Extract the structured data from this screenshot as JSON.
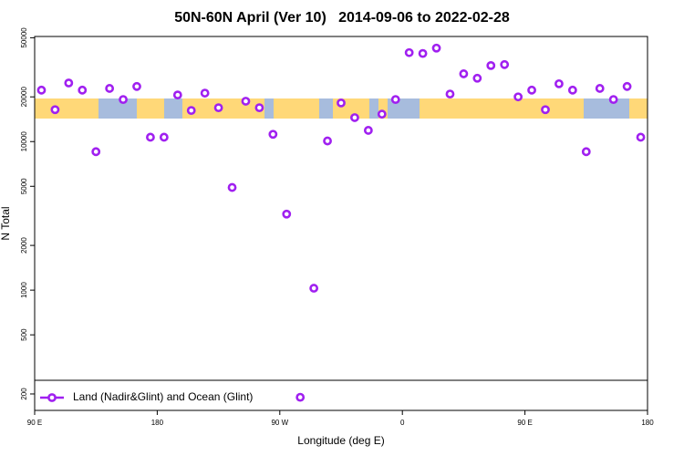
{
  "chart_data": {
    "type": "scatter",
    "title": "50N-60N April (Ver 10)   2014-09-06 to 2022-02-28",
    "xlabel": "Longitude (deg E)",
    "ylabel": "N Total",
    "xlim": [
      90,
      540
    ],
    "xticks": [
      {
        "value": 90,
        "label": "90 E"
      },
      180,
      {
        "value": 270,
        "label": "90 W"
      },
      {
        "value": 360,
        "label": "0"
      },
      {
        "value": 450,
        "label": "90 E"
      },
      {
        "value": 540,
        "label": "180"
      }
    ],
    "ylim": [
      155,
      51000
    ],
    "yticks": [
      200,
      500,
      1000,
      2000,
      5000,
      10000,
      20000,
      50000
    ],
    "ylog": true,
    "legend": "bottom-left",
    "series": [
      {
        "name": "Land (Nadir&Glint) and Ocean (Glint)",
        "color": "#a020f0",
        "x": [
          95,
          105,
          115,
          125,
          135,
          145,
          155,
          165,
          175,
          185,
          195,
          205,
          215,
          225,
          235,
          245,
          255,
          265,
          275,
          285,
          295,
          305,
          315,
          325,
          335,
          345,
          355,
          365,
          375,
          385,
          395,
          405,
          415,
          425,
          435,
          445,
          455,
          465,
          475,
          485,
          495,
          505,
          515,
          525,
          535
        ],
        "values": [
          22200,
          16400,
          24800,
          22200,
          8550,
          22800,
          19200,
          23500,
          10700,
          10700,
          20600,
          16200,
          21200,
          16900,
          4910,
          18700,
          16900,
          11200,
          3250,
          190,
          1030,
          10100,
          18200,
          14500,
          11900,
          15300,
          19200,
          39700,
          39200,
          42600,
          20900,
          28600,
          26700,
          32500,
          33000,
          20000,
          22200,
          16400,
          24500,
          22200,
          8550,
          22800,
          19200,
          23500,
          10700
        ]
      }
    ]
  }
}
